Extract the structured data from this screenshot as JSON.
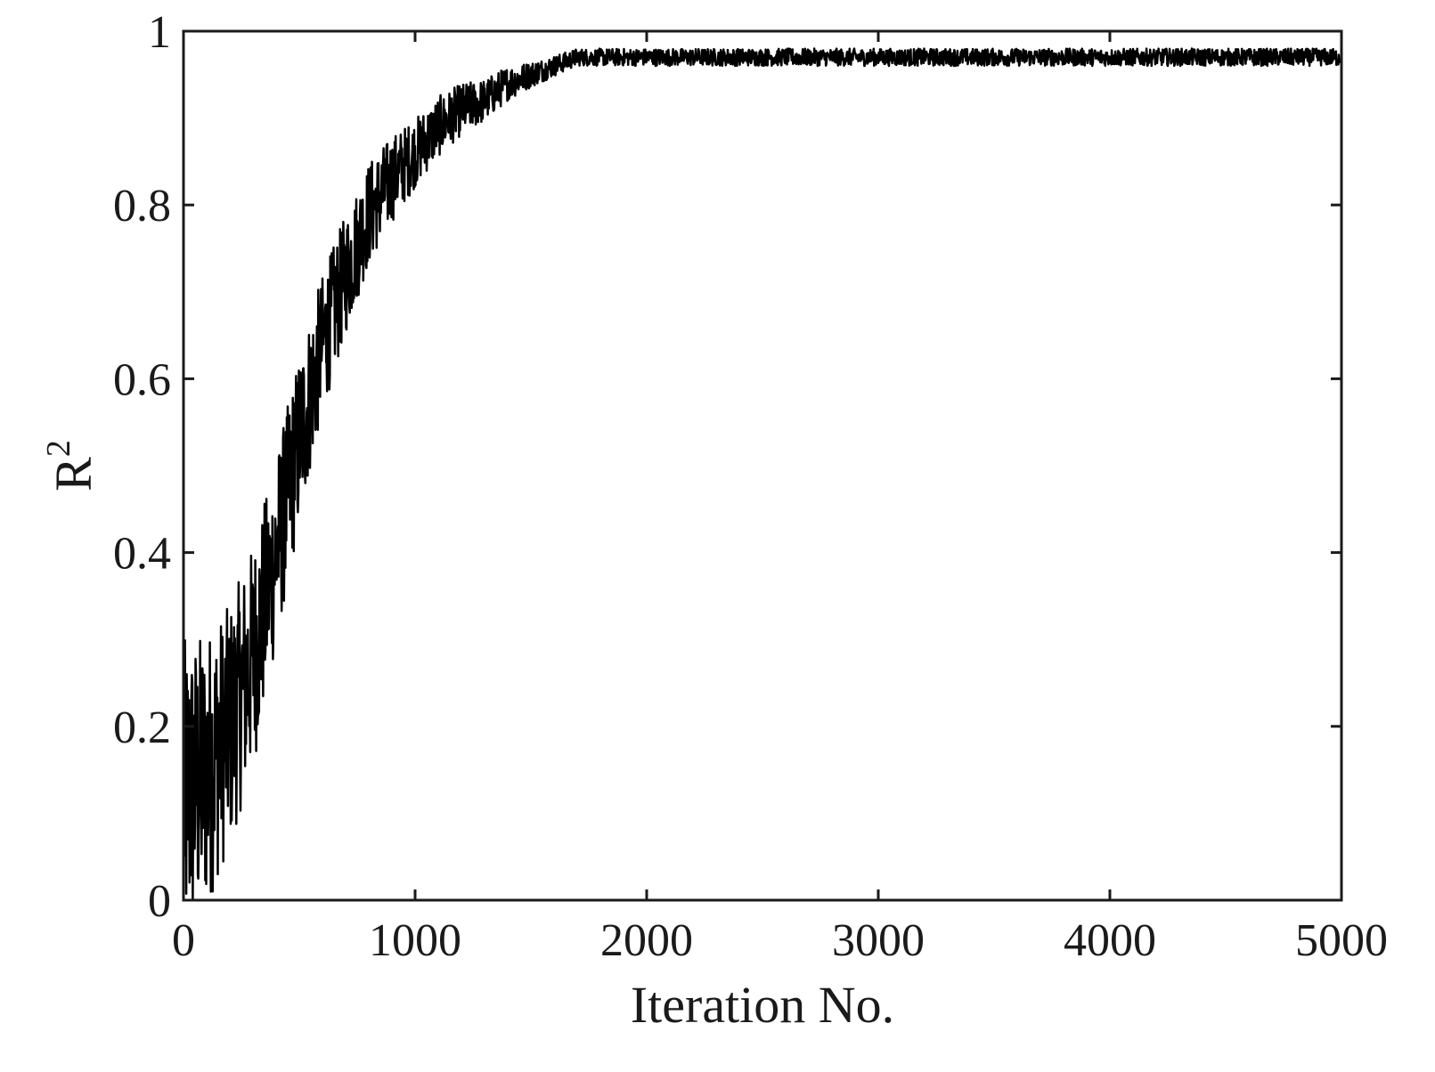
{
  "chart_data": {
    "type": "line",
    "title": "",
    "xlabel": "Iteration No.",
    "ylabel": "R",
    "ylabel_superscript": "2",
    "xlim": [
      0,
      5000
    ],
    "ylim": [
      0,
      1
    ],
    "xticks": [
      0,
      1000,
      2000,
      3000,
      4000,
      5000
    ],
    "yticks": [
      0,
      0.2,
      0.4,
      0.6,
      0.8,
      1
    ],
    "xtick_labels": [
      "0",
      "1000",
      "2000",
      "3000",
      "4000",
      "5000"
    ],
    "ytick_labels": [
      "0",
      "0.2",
      "0.4",
      "0.6",
      "0.8",
      "1"
    ],
    "grid": false,
    "legend": "none",
    "line_color": "#000000",
    "series": [
      {
        "x": [
          0,
          100,
          200,
          300,
          400,
          500,
          600,
          700,
          800,
          900,
          1000,
          1100,
          1200,
          1300,
          1400,
          1500,
          1600,
          1700,
          1800,
          2000,
          2500,
          3000,
          3500,
          4000,
          4500,
          5000
        ],
        "values": [
          0.12,
          0.15,
          0.2,
          0.28,
          0.4,
          0.53,
          0.64,
          0.72,
          0.79,
          0.83,
          0.86,
          0.89,
          0.91,
          0.92,
          0.94,
          0.95,
          0.96,
          0.97,
          0.97,
          0.97,
          0.97,
          0.97,
          0.97,
          0.97,
          0.97,
          0.97
        ],
        "noise_amplitude": [
          0.18,
          0.16,
          0.14,
          0.13,
          0.11,
          0.1,
          0.08,
          0.07,
          0.06,
          0.05,
          0.04,
          0.035,
          0.03,
          0.025,
          0.02,
          0.015,
          0.012,
          0.01,
          0.01,
          0.01,
          0.01,
          0.01,
          0.01,
          0.01,
          0.01,
          0.01
        ]
      }
    ]
  }
}
